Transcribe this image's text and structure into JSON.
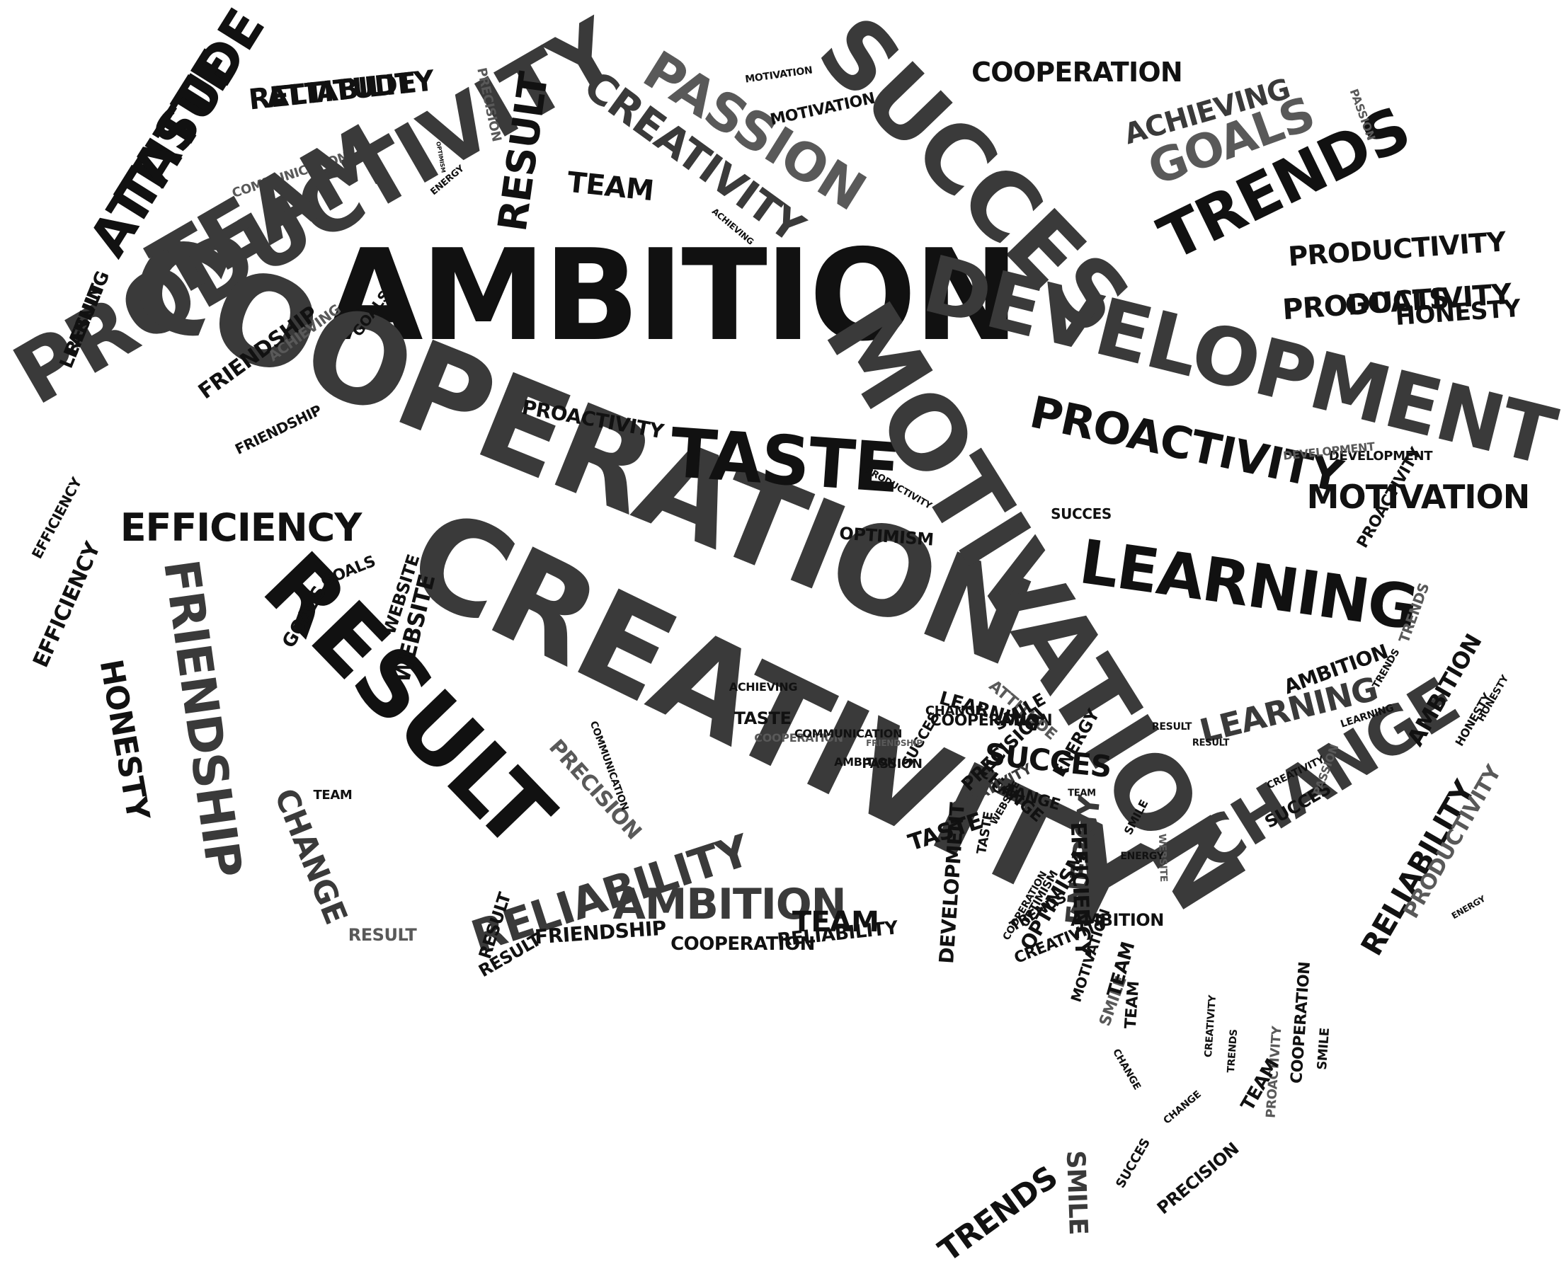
{
  "colors": {
    "background": "#ffffff",
    "dark": "#111111",
    "mid": "#3a3a3a",
    "light": "#595959",
    "pale": "#6e6e6e"
  },
  "words": [
    "ATTITUDE",
    "ATTITUDE",
    "PRODUCTIVITY",
    "PRODUCTIVITY",
    "RESULT",
    "COMMUNICATION",
    "PRECISION",
    "RESULT",
    "ENERGY",
    "OPTIMISM",
    "SUCCES",
    "AMBITION",
    "DEVELOPMENT",
    "COOPERATION",
    "PASSION",
    "CREATIVITY",
    "MOTIVATION",
    "MOTIVATION",
    "TEAM",
    "ACHIEVING",
    "COOPERATION",
    "ACHIEVING",
    "GOALS",
    "TRENDS",
    "PRODUCTIVITY",
    "HONESTY",
    "DEVELOPMENT",
    "TASTE",
    "PROACTIVITY",
    "PROACTIVITY",
    "MOTIVATION",
    "COOPERATION",
    "CREATIVITY",
    "RESULT",
    "LEARNING",
    "LEARNING",
    "EFFICIENCY",
    "EFFICIENCY",
    "EFFICIENCY",
    "FRIENDSHIP",
    "HONESTY",
    "WEBSITE",
    "CHANGE",
    "TEAM",
    "RELIABILITY",
    "AMBITION",
    "CHANGE",
    "ENERGY",
    "SUCCES",
    "PRECISION",
    "FRIENDSHIP",
    "COOPERATION",
    "RELIABILITY",
    "SMILE",
    "SMILE",
    "TRENDS",
    "FRIENDSHIP",
    "ACHIEVING",
    "GOALS",
    "FRIENDSHIP",
    "WEBSITE",
    "OPTIMISM",
    "TASTE",
    "SUCCES",
    "SUCCES",
    "LEARNING",
    "DEVELOPMENT",
    "PASSION",
    "PROACTIVITY",
    "HONESTY",
    "RELIABILITY",
    "ENERGY",
    "ATTITUDE",
    "CHANGE",
    "PRODUCTIVITY",
    "EFFICIENCY",
    "OPTIMISM",
    "TEAM",
    "GOALS",
    "COMMUNICATION",
    "PASSION",
    "TRENDS",
    "AMBITION",
    "CREATIVITY",
    "COOPERATION",
    "RESULT",
    "RESULT",
    "TASTE",
    "CHANGE",
    "MOTIVATION",
    "AMBITION",
    "SMILE",
    "PRODUCTIVITY",
    "OPTIMISM",
    "WEBSITE",
    "TRENDS",
    "HONESTY",
    "ENERGY",
    "TEAM",
    "RESULT",
    "RESULT",
    "RESULT",
    "GOALS",
    "ENERGY",
    "COOPERATION",
    "COMMUNICATION",
    "AMBITION",
    "PASSION",
    "SUCCES",
    "ACHIEVING",
    "SMILE",
    "PRECISION",
    "LEARNING",
    "CHANGE",
    "FRIENDSHIP",
    "TASTE",
    "CREATIVITY",
    "WEBSITE",
    "DEVELOPMENT",
    "TRENDS",
    "AMBITION",
    "CREATIVITY",
    "MOTIVATION",
    "TEAM",
    "TEAM",
    "CREATIVITY",
    "TRENDS",
    "COOPERATION",
    "SMILE",
    "PROACTIVITY",
    "TEAM",
    "CHANGE",
    "CHANGE",
    "SUCCES",
    "PRECISION",
    "TASTE",
    "RELIABILITY",
    "TEAM",
    "GOALS",
    "LEARNING"
  ]
}
